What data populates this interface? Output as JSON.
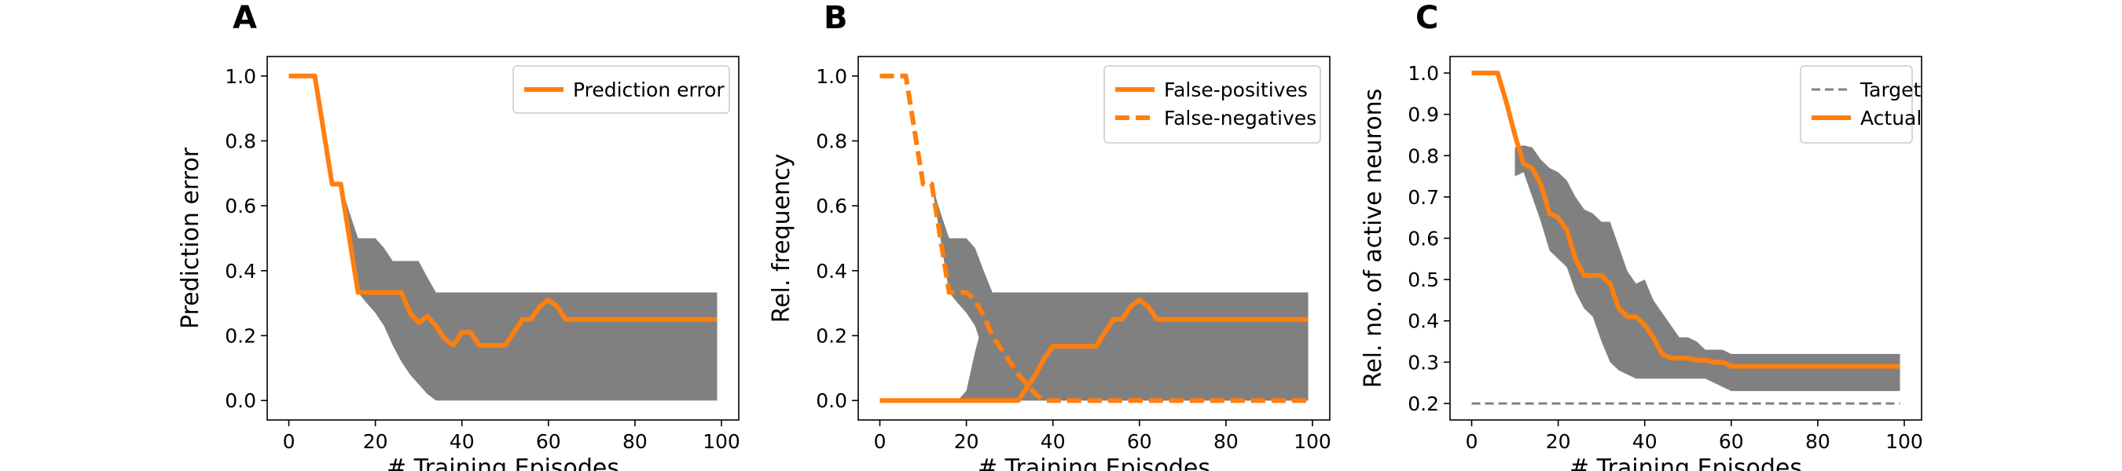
{
  "chart_data": [
    {
      "type": "line",
      "panel": "A",
      "xlabel": "# Training Episodes",
      "ylabel": "Prediction error",
      "xlim": [
        -5,
        104
      ],
      "ylim": [
        -0.06,
        1.06
      ],
      "xticks": [
        0,
        20,
        40,
        60,
        80,
        100
      ],
      "yticks": [
        0.0,
        0.2,
        0.4,
        0.6,
        0.8,
        1.0
      ],
      "xtick_labels": [
        "0",
        "20",
        "40",
        "60",
        "80",
        "100"
      ],
      "ytick_labels": [
        "0.0",
        "0.2",
        "0.4",
        "0.6",
        "0.8",
        "1.0"
      ],
      "grid": false,
      "legend_position": "top-right",
      "series": [
        {
          "name": "Prediction error",
          "color": "#ff7f0e",
          "dash": "solid",
          "x": [
            0,
            6,
            10,
            12,
            14,
            16,
            18,
            20,
            26,
            28,
            30,
            32,
            34,
            36,
            38,
            40,
            42,
            44,
            46,
            48,
            50,
            52,
            54,
            56,
            58,
            60,
            62,
            64,
            66,
            70,
            80,
            90,
            99
          ],
          "y": [
            1.0,
            1.0,
            0.667,
            0.667,
            0.5,
            0.333,
            0.333,
            0.333,
            0.333,
            0.27,
            0.24,
            0.26,
            0.23,
            0.19,
            0.17,
            0.21,
            0.21,
            0.17,
            0.17,
            0.17,
            0.17,
            0.21,
            0.25,
            0.25,
            0.29,
            0.31,
            0.29,
            0.25,
            0.25,
            0.25,
            0.25,
            0.25,
            0.25
          ]
        }
      ],
      "bands": [
        {
          "color": "#808080",
          "x": [
            12,
            14,
            16,
            18,
            20,
            22,
            24,
            26,
            28,
            30,
            32,
            34,
            36,
            38,
            40,
            50,
            60,
            70,
            80,
            90,
            99
          ],
          "lower": [
            0.667,
            0.5,
            0.333,
            0.3,
            0.27,
            0.23,
            0.17,
            0.12,
            0.08,
            0.05,
            0.02,
            0.0,
            0.0,
            0.0,
            0.0,
            0.0,
            0.0,
            0.0,
            0.0,
            0.0,
            0.0
          ],
          "upper": [
            0.667,
            0.58,
            0.5,
            0.5,
            0.5,
            0.47,
            0.43,
            0.43,
            0.43,
            0.43,
            0.38,
            0.333,
            0.333,
            0.333,
            0.333,
            0.333,
            0.333,
            0.333,
            0.333,
            0.333,
            0.333
          ]
        }
      ]
    },
    {
      "type": "line",
      "panel": "B",
      "xlabel": "# Training Episodes",
      "ylabel": "Rel. frequency",
      "xlim": [
        -5,
        104
      ],
      "ylim": [
        -0.06,
        1.06
      ],
      "xticks": [
        0,
        20,
        40,
        60,
        80,
        100
      ],
      "yticks": [
        0.0,
        0.2,
        0.4,
        0.6,
        0.8,
        1.0
      ],
      "xtick_labels": [
        "0",
        "20",
        "40",
        "60",
        "80",
        "100"
      ],
      "ytick_labels": [
        "0.0",
        "0.2",
        "0.4",
        "0.6",
        "0.8",
        "1.0"
      ],
      "grid": false,
      "legend_position": "top-right",
      "series": [
        {
          "name": "False-positives",
          "color": "#ff7f0e",
          "dash": "solid",
          "x": [
            0,
            10,
            20,
            30,
            32,
            34,
            36,
            38,
            40,
            50,
            52,
            54,
            56,
            58,
            60,
            62,
            64,
            70,
            80,
            90,
            99
          ],
          "y": [
            0.0,
            0.0,
            0.0,
            0.0,
            0.0,
            0.04,
            0.08,
            0.13,
            0.167,
            0.167,
            0.21,
            0.25,
            0.25,
            0.29,
            0.31,
            0.29,
            0.25,
            0.25,
            0.25,
            0.25,
            0.25
          ]
        },
        {
          "name": "False-negatives",
          "color": "#ff7f0e",
          "dash": "dashed",
          "x": [
            0,
            6,
            10,
            12,
            14,
            16,
            18,
            20,
            22,
            24,
            26,
            28,
            30,
            32,
            34,
            36,
            38,
            40,
            50,
            60,
            70,
            80,
            90,
            99
          ],
          "y": [
            1.0,
            1.0,
            0.667,
            0.667,
            0.5,
            0.333,
            0.333,
            0.333,
            0.31,
            0.26,
            0.2,
            0.16,
            0.12,
            0.08,
            0.05,
            0.02,
            0.0,
            0.0,
            0.0,
            0.0,
            0.0,
            0.0,
            0.0,
            0.0
          ]
        }
      ],
      "bands": [
        {
          "color": "#808080",
          "x": [
            12,
            14,
            16,
            18,
            20,
            22,
            24,
            26,
            28,
            30,
            32,
            34,
            36,
            38,
            40,
            50,
            60,
            70,
            80,
            90,
            99
          ],
          "lower": [
            0.667,
            0.5,
            0.333,
            0.3,
            0.27,
            0.23,
            0.15,
            0.09,
            0.04,
            0.0,
            0.0,
            0.0,
            0.0,
            0.0,
            0.0,
            0.0,
            0.0,
            0.0,
            0.0,
            0.0,
            0.0
          ],
          "upper": [
            0.667,
            0.58,
            0.5,
            0.5,
            0.5,
            0.47,
            0.4,
            0.333,
            0.333,
            0.333,
            0.333,
            0.333,
            0.333,
            0.333,
            0.333,
            0.333,
            0.333,
            0.333,
            0.333,
            0.333,
            0.333
          ]
        },
        {
          "color": "#808080",
          "x": [
            18,
            20,
            22,
            24,
            26,
            28,
            30,
            32,
            34,
            36,
            40,
            50,
            60,
            70,
            80,
            90,
            99
          ],
          "lower": [
            0.0,
            0.0,
            0.0,
            0.0,
            0.0,
            0.0,
            0.0,
            0.0,
            0.0,
            0.0,
            0.0,
            0.0,
            0.0,
            0.0,
            0.0,
            0.0,
            0.0
          ],
          "upper": [
            0.0,
            0.03,
            0.15,
            0.25,
            0.3,
            0.32,
            0.333,
            0.333,
            0.333,
            0.333,
            0.333,
            0.333,
            0.333,
            0.333,
            0.333,
            0.333,
            0.333
          ]
        }
      ]
    },
    {
      "type": "line",
      "panel": "C",
      "xlabel": "# Training Episodes",
      "ylabel": "Rel. no. of active neurons",
      "xlim": [
        -5,
        104
      ],
      "ylim": [
        0.16,
        1.04
      ],
      "xticks": [
        0,
        20,
        40,
        60,
        80,
        100
      ],
      "yticks": [
        0.2,
        0.3,
        0.4,
        0.5,
        0.6,
        0.7,
        0.8,
        0.9,
        1.0
      ],
      "xtick_labels": [
        "0",
        "20",
        "40",
        "60",
        "80",
        "100"
      ],
      "ytick_labels": [
        "0.2",
        "0.3",
        "0.4",
        "0.5",
        "0.6",
        "0.7",
        "0.8",
        "0.9",
        "1.0"
      ],
      "grid": false,
      "legend_position": "top-right",
      "series": [
        {
          "name": "Target",
          "color": "#808080",
          "dash": "dashed",
          "x": [
            0,
            99
          ],
          "y": [
            0.2,
            0.2
          ]
        },
        {
          "name": "Actual",
          "color": "#ff7f0e",
          "dash": "solid",
          "x": [
            0,
            6,
            8,
            10,
            12,
            14,
            16,
            18,
            20,
            22,
            24,
            26,
            28,
            30,
            32,
            34,
            36,
            38,
            40,
            42,
            44,
            46,
            48,
            50,
            52,
            54,
            56,
            58,
            60,
            70,
            80,
            90,
            99
          ],
          "y": [
            1.0,
            1.0,
            0.93,
            0.85,
            0.78,
            0.77,
            0.73,
            0.66,
            0.65,
            0.62,
            0.55,
            0.51,
            0.51,
            0.51,
            0.49,
            0.43,
            0.41,
            0.41,
            0.39,
            0.36,
            0.32,
            0.31,
            0.31,
            0.31,
            0.305,
            0.305,
            0.3,
            0.3,
            0.29,
            0.29,
            0.29,
            0.29,
            0.29
          ]
        }
      ],
      "bands": [
        {
          "color": "#808080",
          "x": [
            10,
            12,
            14,
            16,
            18,
            20,
            22,
            24,
            26,
            28,
            30,
            32,
            34,
            36,
            38,
            40,
            42,
            44,
            46,
            48,
            50,
            52,
            54,
            56,
            58,
            60,
            70,
            80,
            90,
            99
          ],
          "lower": [
            0.75,
            0.76,
            0.7,
            0.64,
            0.57,
            0.55,
            0.53,
            0.47,
            0.43,
            0.41,
            0.35,
            0.3,
            0.28,
            0.27,
            0.26,
            0.26,
            0.26,
            0.26,
            0.26,
            0.26,
            0.26,
            0.26,
            0.26,
            0.25,
            0.24,
            0.23,
            0.23,
            0.23,
            0.23,
            0.23
          ],
          "upper": [
            0.82,
            0.825,
            0.82,
            0.79,
            0.77,
            0.76,
            0.74,
            0.7,
            0.67,
            0.66,
            0.64,
            0.64,
            0.58,
            0.52,
            0.49,
            0.5,
            0.45,
            0.42,
            0.39,
            0.36,
            0.36,
            0.35,
            0.33,
            0.33,
            0.33,
            0.32,
            0.32,
            0.32,
            0.32,
            0.32
          ]
        }
      ]
    }
  ]
}
